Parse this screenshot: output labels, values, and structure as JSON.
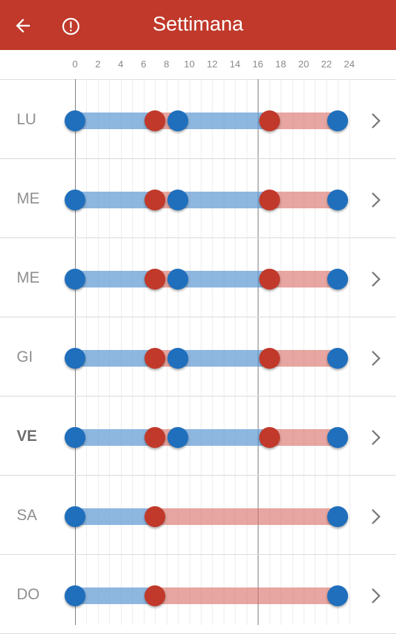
{
  "header": {
    "title": "Settimana",
    "back_icon": "arrow-left-icon",
    "info_icon": "info-circle-icon",
    "background": "#c0392b"
  },
  "scale": {
    "ticks": [
      "0",
      "2",
      "4",
      "6",
      "8",
      "10",
      "12",
      "14",
      "16",
      "18",
      "20",
      "22",
      "24"
    ]
  },
  "colors": {
    "blue_dot": "#1f6fbd",
    "red_dot": "#c1392b",
    "blue_bar": "#629bd4",
    "red_bar": "#d97068"
  },
  "days": [
    {
      "label": "LU",
      "bold": false,
      "dots": [
        {
          "hour": 0,
          "color": "blue"
        },
        {
          "hour": 7,
          "color": "red"
        },
        {
          "hour": 9,
          "color": "blue"
        },
        {
          "hour": 17,
          "color": "red"
        },
        {
          "hour": 23,
          "color": "blue"
        }
      ]
    },
    {
      "label": "ME",
      "bold": false,
      "dots": [
        {
          "hour": 0,
          "color": "blue"
        },
        {
          "hour": 7,
          "color": "red"
        },
        {
          "hour": 9,
          "color": "blue"
        },
        {
          "hour": 17,
          "color": "red"
        },
        {
          "hour": 23,
          "color": "blue"
        }
      ]
    },
    {
      "label": "ME",
      "bold": false,
      "dots": [
        {
          "hour": 0,
          "color": "blue"
        },
        {
          "hour": 7,
          "color": "red"
        },
        {
          "hour": 9,
          "color": "blue"
        },
        {
          "hour": 17,
          "color": "red"
        },
        {
          "hour": 23,
          "color": "blue"
        }
      ]
    },
    {
      "label": "GI",
      "bold": false,
      "dots": [
        {
          "hour": 0,
          "color": "blue"
        },
        {
          "hour": 7,
          "color": "red"
        },
        {
          "hour": 9,
          "color": "blue"
        },
        {
          "hour": 17,
          "color": "red"
        },
        {
          "hour": 23,
          "color": "blue"
        }
      ]
    },
    {
      "label": "VE",
      "bold": true,
      "dots": [
        {
          "hour": 0,
          "color": "blue"
        },
        {
          "hour": 7,
          "color": "red"
        },
        {
          "hour": 9,
          "color": "blue"
        },
        {
          "hour": 17,
          "color": "red"
        },
        {
          "hour": 23,
          "color": "blue"
        }
      ]
    },
    {
      "label": "SA",
      "bold": false,
      "dots": [
        {
          "hour": 0,
          "color": "blue"
        },
        {
          "hour": 7,
          "color": "red"
        },
        {
          "hour": 23,
          "color": "blue"
        }
      ]
    },
    {
      "label": "DO",
      "bold": false,
      "dots": [
        {
          "hour": 0,
          "color": "blue"
        },
        {
          "hour": 7,
          "color": "red"
        },
        {
          "hour": 23,
          "color": "blue"
        }
      ]
    }
  ]
}
